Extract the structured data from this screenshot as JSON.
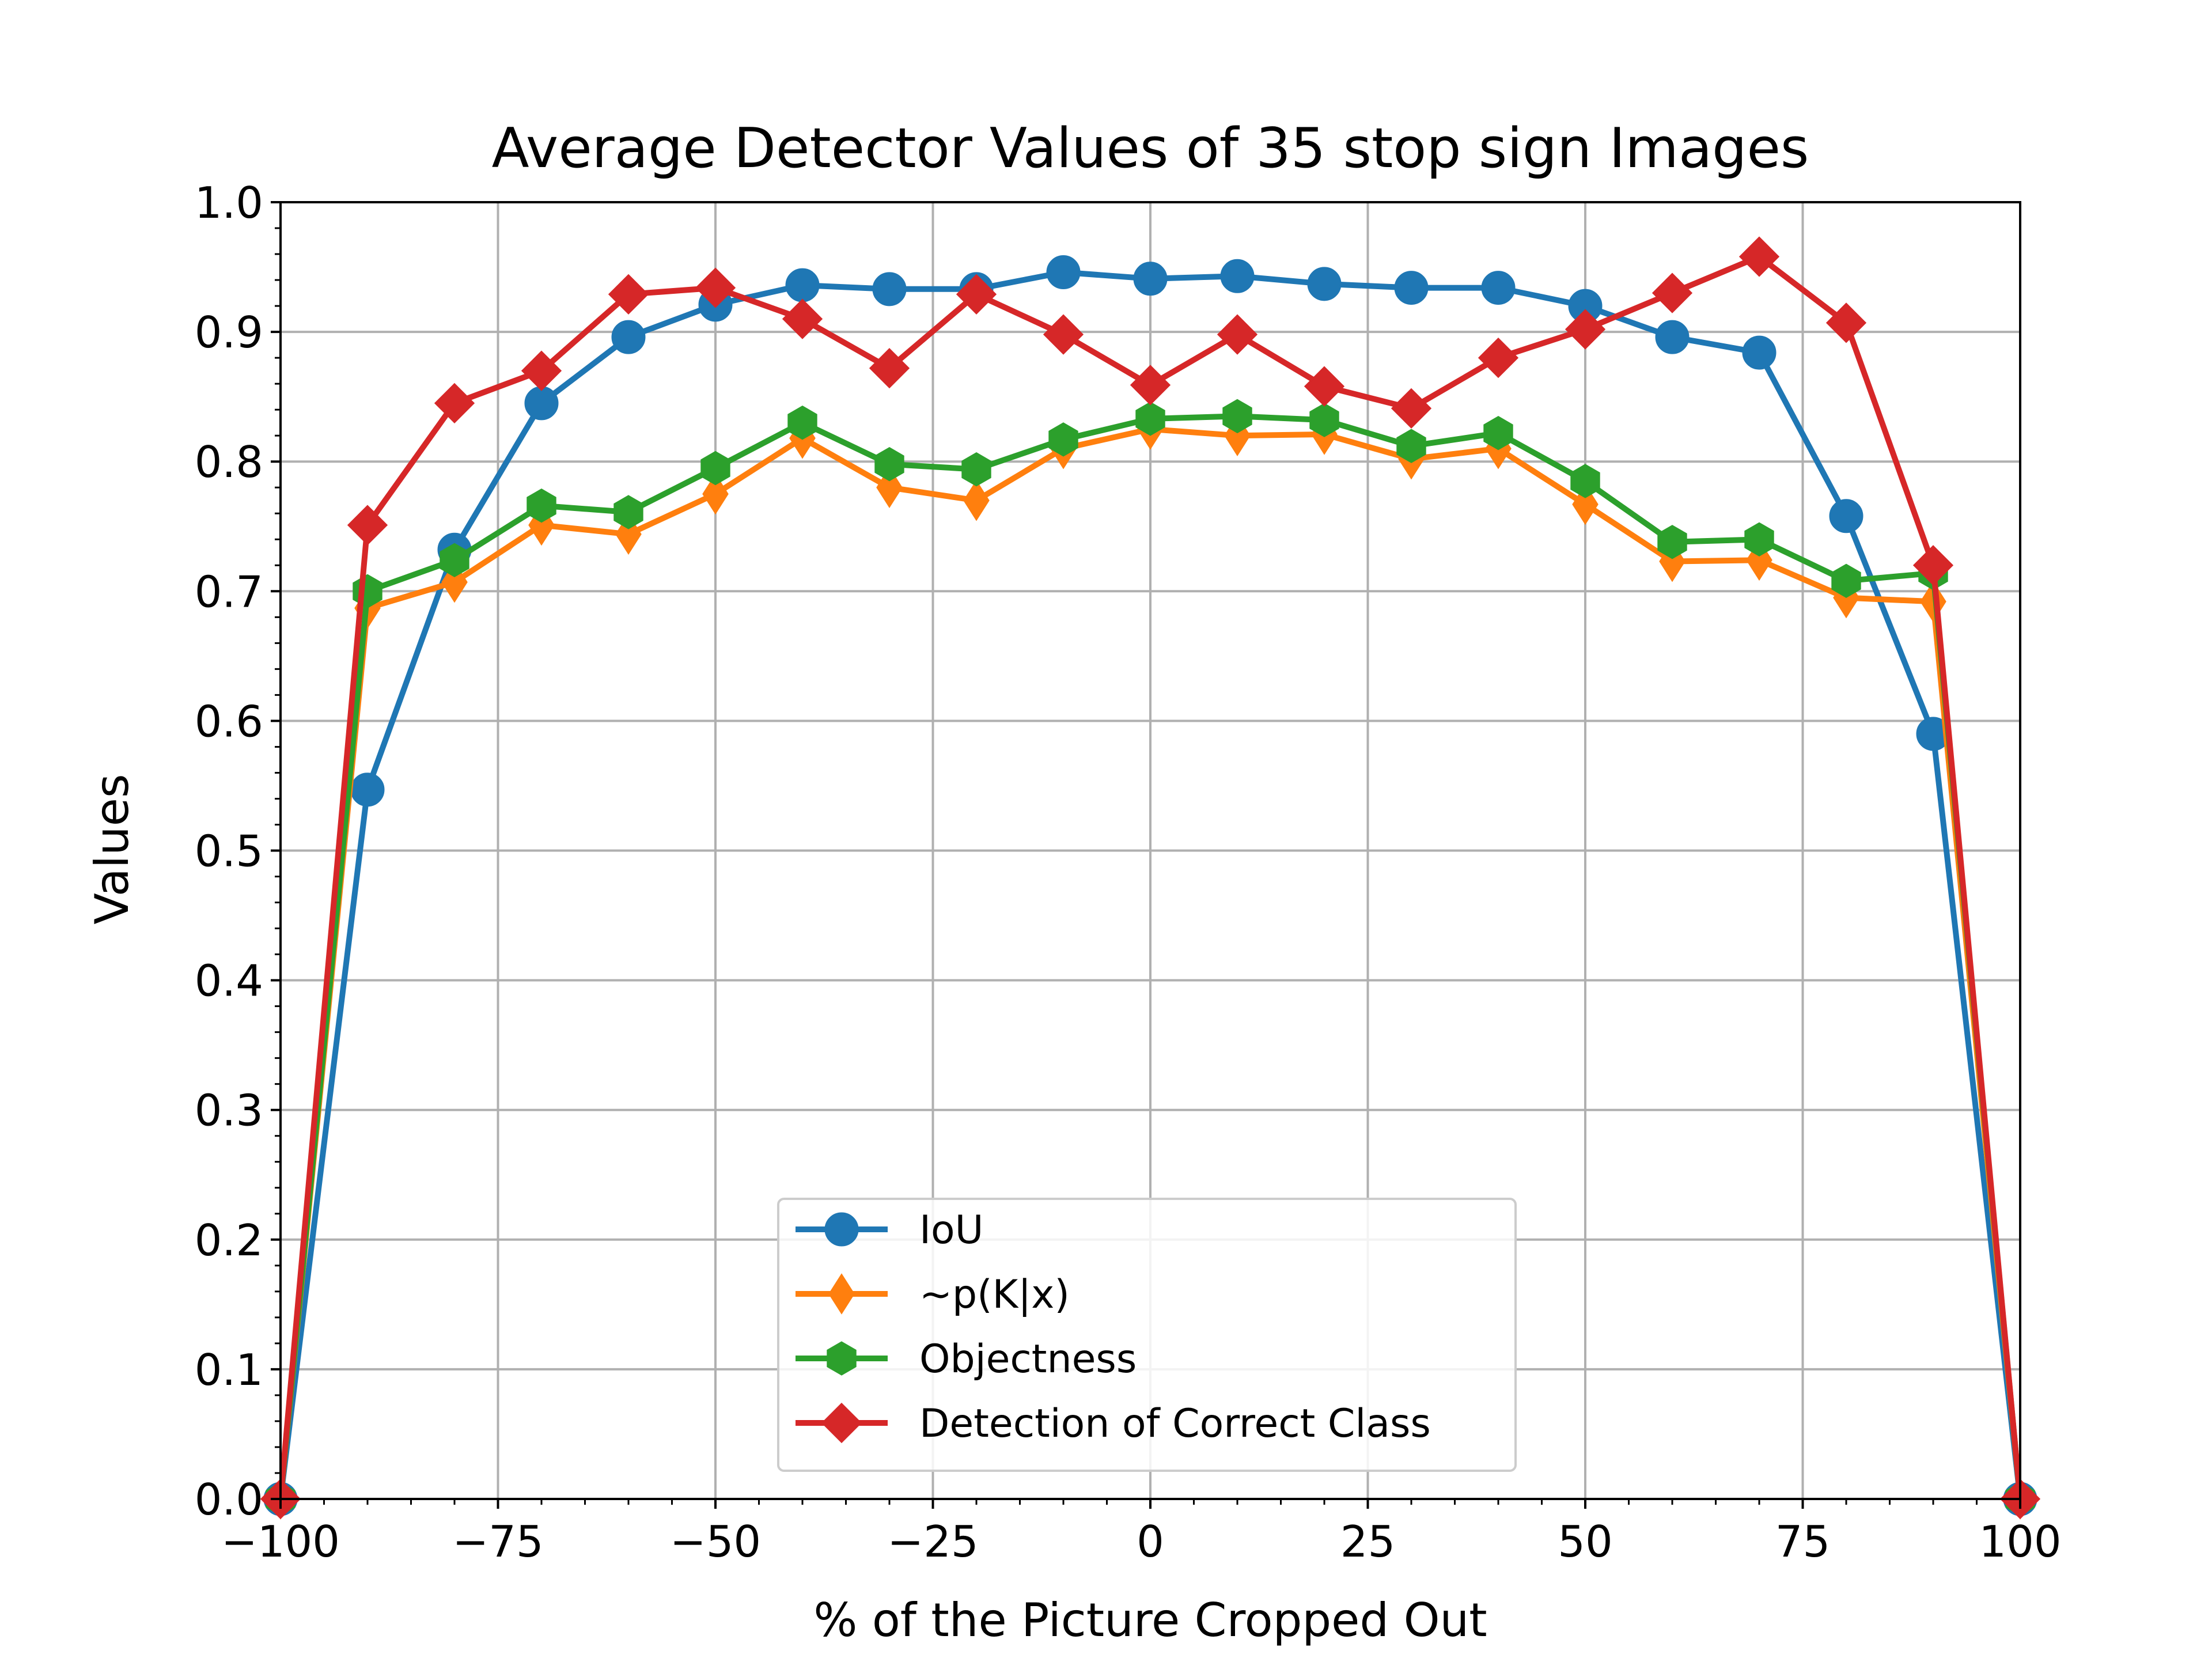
{
  "chart_data": {
    "type": "line",
    "title": "Average Detector Values of 35 stop sign Images",
    "xlabel": "% of the Picture Cropped Out",
    "ylabel": "Values",
    "xlim": [
      -100,
      100
    ],
    "ylim": [
      0.0,
      1.0
    ],
    "x_ticks": [
      "−100",
      "−75",
      "−50",
      "−25",
      "0",
      "25",
      "50",
      "75",
      "100"
    ],
    "y_ticks": [
      "0.0",
      "0.1",
      "0.2",
      "0.3",
      "0.4",
      "0.5",
      "0.6",
      "0.7",
      "0.8",
      "0.9",
      "1.0"
    ],
    "grid": true,
    "legend_position": "lower-center",
    "x": [
      -100,
      -90,
      -80,
      -70,
      -60,
      -50,
      -40,
      -30,
      -20,
      -10,
      0,
      10,
      20,
      30,
      40,
      50,
      60,
      70,
      80,
      90,
      100
    ],
    "series": [
      {
        "name": "IoU",
        "color": "#1f77b4",
        "marker": "circle",
        "values": [
          0.0,
          0.547,
          0.732,
          0.845,
          0.896,
          0.921,
          0.936,
          0.933,
          0.933,
          0.946,
          0.941,
          0.943,
          0.937,
          0.934,
          0.934,
          0.92,
          0.896,
          0.884,
          0.758,
          0.59,
          0.0
        ]
      },
      {
        "name": "~p(K|x)",
        "color": "#ff7f0e",
        "marker": "thin_diamond",
        "values": [
          0.0,
          0.687,
          0.707,
          0.751,
          0.744,
          0.775,
          0.818,
          0.78,
          0.77,
          0.81,
          0.825,
          0.82,
          0.821,
          0.802,
          0.81,
          0.767,
          0.723,
          0.724,
          0.695,
          0.692,
          0.0
        ]
      },
      {
        "name": "Objectness",
        "color": "#2ca02c",
        "marker": "hexagon",
        "values": [
          0.0,
          0.7,
          0.724,
          0.766,
          0.761,
          0.795,
          0.83,
          0.798,
          0.794,
          0.817,
          0.833,
          0.835,
          0.832,
          0.812,
          0.822,
          0.785,
          0.738,
          0.74,
          0.708,
          0.714,
          0.0
        ]
      },
      {
        "name": "Detection of Correct Class",
        "color": "#d62728",
        "marker": "diamond",
        "values": [
          0.0,
          0.751,
          0.845,
          0.87,
          0.929,
          0.934,
          0.91,
          0.872,
          0.929,
          0.898,
          0.859,
          0.898,
          0.858,
          0.841,
          0.88,
          0.902,
          0.93,
          0.958,
          0.907,
          0.72,
          0.0
        ]
      }
    ]
  }
}
